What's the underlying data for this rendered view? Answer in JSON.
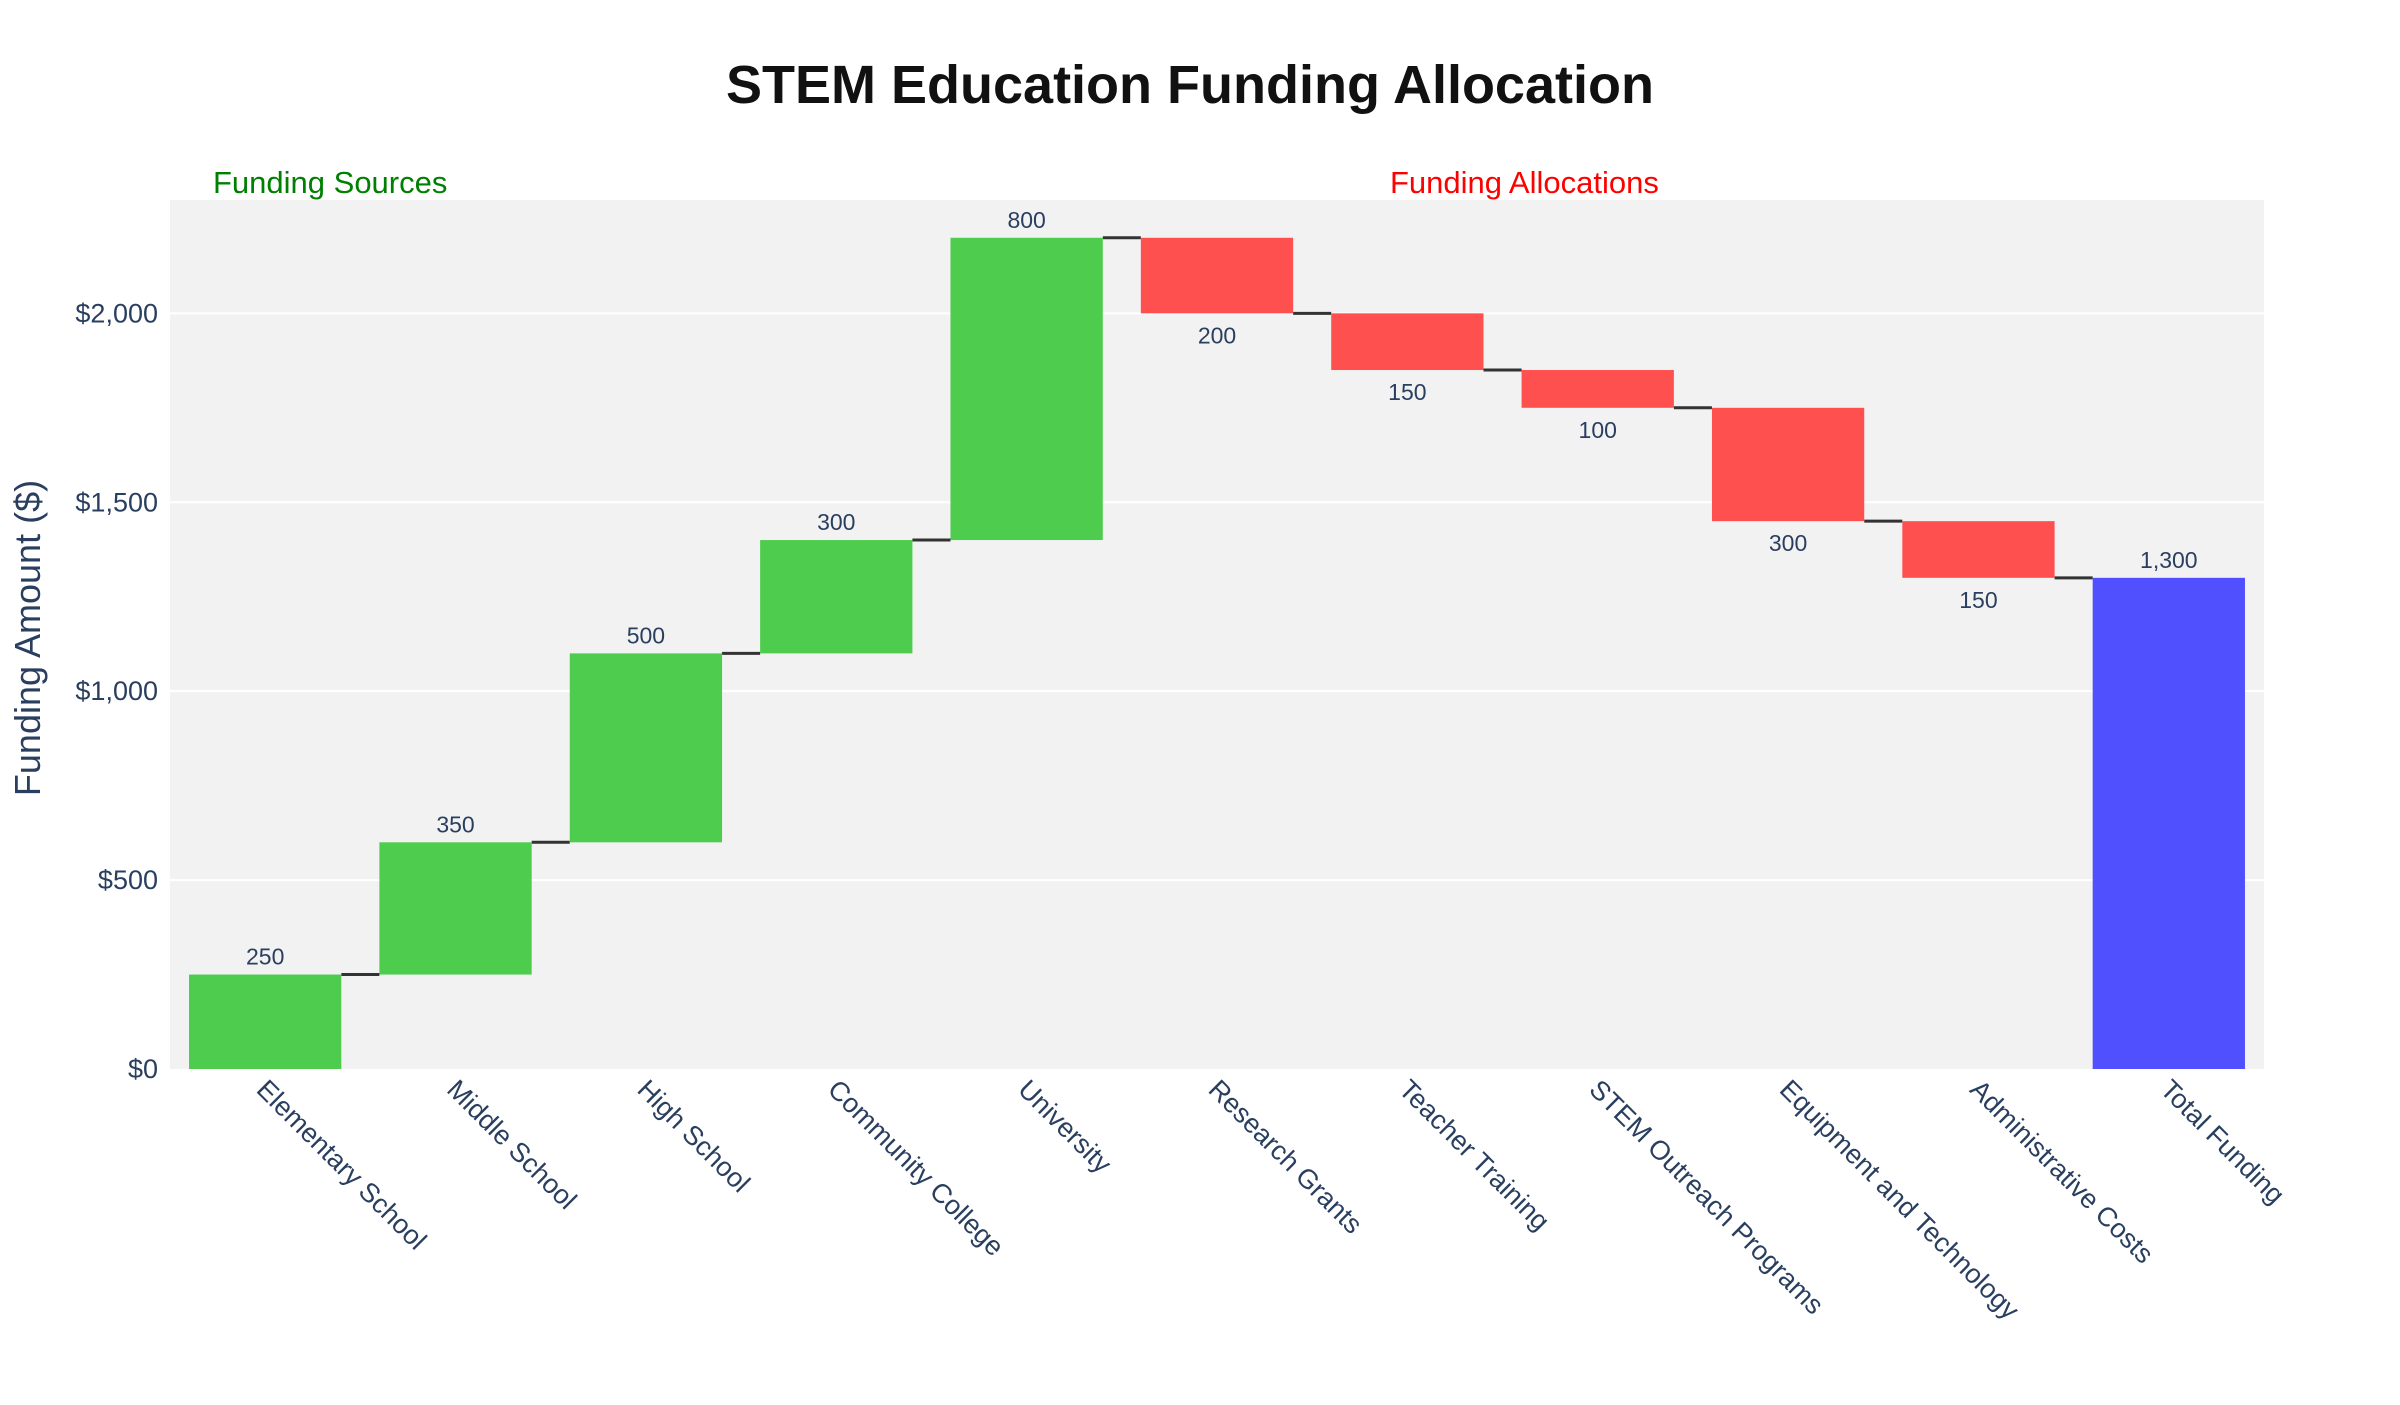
{
  "chart_data": {
    "type": "waterfall",
    "title": "STEM Education Funding Allocation",
    "xlabel": "",
    "ylabel": "Funding Amount ($)",
    "ylim": [
      0,
      2300
    ],
    "yticks": [
      0,
      500,
      1000,
      1500,
      2000
    ],
    "ytick_labels": [
      "$0",
      "$500",
      "$1,000",
      "$1,500",
      "$2,000"
    ],
    "grid": true,
    "section_labels": [
      {
        "text": "Funding Sources",
        "color": "#008000"
      },
      {
        "text": "Funding Allocations",
        "color": "#ff0000"
      }
    ],
    "colors": {
      "increase": "#4dcc4d",
      "decrease": "#ff5050",
      "total": "#5050ff",
      "connector": "#333333",
      "plot_bg": "#f2f2f2",
      "grid": "#ffffff"
    },
    "categories": [
      "Elementary School",
      "Middle School",
      "High School",
      "Community College",
      "University",
      "Research Grants",
      "Teacher Training",
      "STEM Outreach Programs",
      "Equipment and Technology",
      "Administrative Costs",
      "Total Funding"
    ],
    "values": [
      250,
      350,
      500,
      300,
      800,
      -200,
      -150,
      -100,
      -300,
      -150,
      1300
    ],
    "measures": [
      "relative",
      "relative",
      "relative",
      "relative",
      "relative",
      "relative",
      "relative",
      "relative",
      "relative",
      "relative",
      "total"
    ],
    "data_labels": [
      "250",
      "350",
      "500",
      "300",
      "800",
      "200",
      "150",
      "100",
      "300",
      "150",
      "1,300"
    ]
  }
}
